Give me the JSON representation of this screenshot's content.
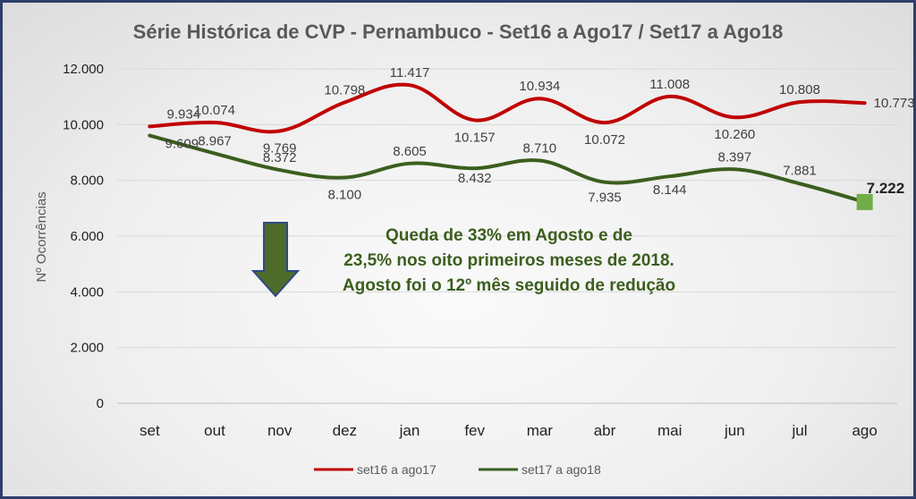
{
  "chart_data": {
    "type": "line",
    "title": "Série Histórica de CVP - Pernambuco - Set16 a Ago17 / Set17 a Ago18",
    "ylabel": "Nº Ocorrências",
    "xlabel": "",
    "ylim": [
      0,
      12000
    ],
    "yticks": [
      "0",
      "2.000",
      "4.000",
      "6.000",
      "8.000",
      "10.000",
      "12.000"
    ],
    "ytick_values": [
      0,
      2000,
      4000,
      6000,
      8000,
      10000,
      12000
    ],
    "categories": [
      "set",
      "out",
      "nov",
      "dez",
      "jan",
      "fev",
      "mar",
      "abr",
      "mai",
      "jun",
      "jul",
      "ago"
    ],
    "grid": true,
    "legend_position": "bottom",
    "series": [
      {
        "name": "set16 a ago17",
        "color": "#c00000",
        "values": [
          9934,
          10074,
          9769,
          10798,
          11417,
          10157,
          10934,
          10072,
          11008,
          10260,
          10808,
          10773
        ],
        "labels": [
          "9.934",
          "10.074",
          "9.769",
          "10.798",
          "11.417",
          "10.157",
          "10.934",
          "10.072",
          "11.008",
          "10.260",
          "10.808",
          "10.773"
        ]
      },
      {
        "name": "set17 a ago18",
        "color": "#3b5e1e",
        "values": [
          9609,
          8967,
          8372,
          8100,
          8605,
          8432,
          8710,
          7935,
          8144,
          8397,
          7881,
          7222
        ],
        "labels": [
          "9.609",
          "8.967",
          "8.372",
          "8.100",
          "8.605",
          "8.432",
          "8.710",
          "7.935",
          "8.144",
          "8.397",
          "7.881",
          "7.222"
        ]
      }
    ],
    "annotation": {
      "lines": [
        "Queda de 33% em Agosto e de",
        "23,5% nos oito primeiros meses de 2018.",
        "Agosto foi o 12º mês seguido de redução"
      ],
      "color": "#3b5e1e"
    },
    "arrow_color": "#4e6b2a",
    "arrow_border": "#2f4a80",
    "end_marker_color": "#70ad47"
  }
}
